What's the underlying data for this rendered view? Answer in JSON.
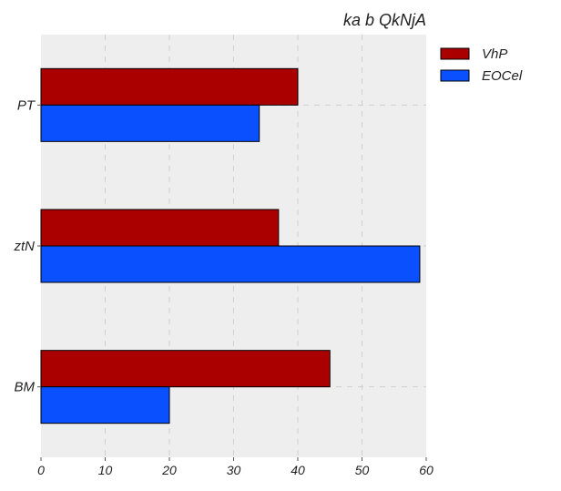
{
  "chart_data": {
    "type": "bar",
    "orientation": "horizontal",
    "title": "ka b QkNjA",
    "xlabel": "",
    "ylabel": "",
    "categories": [
      "PT",
      "ztN",
      "BM"
    ],
    "series": [
      {
        "name": "VhP",
        "color": "#aa0000",
        "values": [
          40,
          37,
          45
        ]
      },
      {
        "name": "EOCel",
        "color": "#0a50ff",
        "values": [
          34,
          59,
          20
        ]
      }
    ],
    "xlim": [
      0,
      60
    ],
    "xticks": [
      0,
      10,
      20,
      30,
      40,
      50,
      60
    ],
    "grid": true,
    "legend_position": "top-right outside"
  }
}
